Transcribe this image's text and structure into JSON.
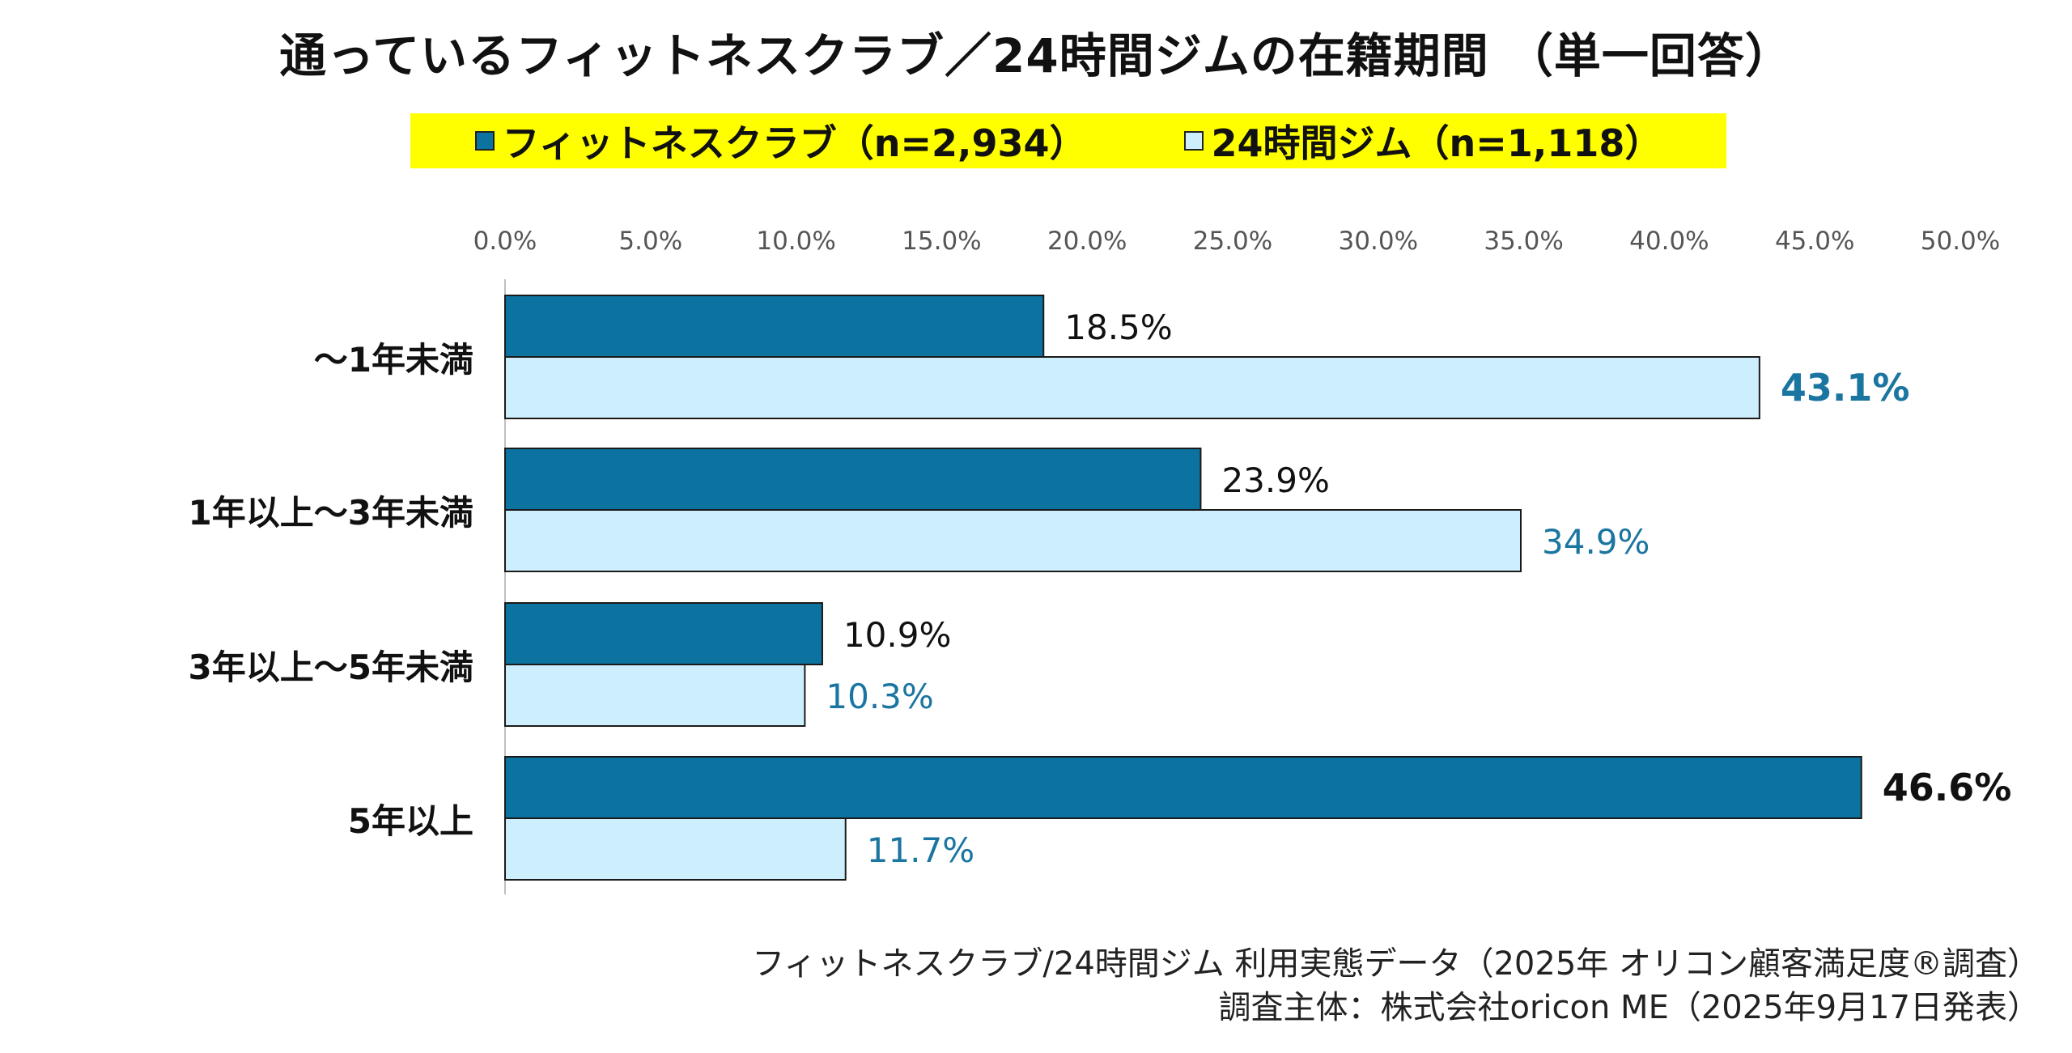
{
  "chart_data": {
    "type": "bar",
    "orientation": "horizontal",
    "title": "通っているフィットネスクラブ／24時間ジムの在籍期間 （単一回答）",
    "categories": [
      "～1年未満",
      "1年以上～3年未満",
      "3年以上～5年未満",
      "5年以上"
    ],
    "series": [
      {
        "name": "フィットネスクラブ（n=2,934）",
        "color": "#0c73a0",
        "label_color": "#111111",
        "values": [
          18.5,
          23.9,
          10.9,
          46.6
        ],
        "labels": [
          "18.5%",
          "23.9%",
          "10.9%",
          "46.6%"
        ]
      },
      {
        "name": "24時間ジム（n=1,118）",
        "color": "#cdeefc",
        "label_color": "#1a75a0",
        "values": [
          43.1,
          34.9,
          10.3,
          11.7
        ],
        "labels": [
          "43.1%",
          "34.9%",
          "10.3%",
          "11.7%"
        ]
      }
    ],
    "xlim": [
      0,
      50
    ],
    "xticks": [
      0,
      5,
      10,
      15,
      20,
      25,
      30,
      35,
      40,
      45,
      50
    ],
    "xtick_labels": [
      "0.0%",
      "5.0%",
      "10.0%",
      "15.0%",
      "20.0%",
      "25.0%",
      "30.0%",
      "35.0%",
      "40.0%",
      "45.0%",
      "50.0%"
    ],
    "axis_position": "top",
    "grid": false,
    "legend_position": "top",
    "legend_background": "#ffff00"
  },
  "footer": {
    "source_line1": "フィットネスクラブ/24時間ジム 利用実態データ（2025年 オリコン顧客満足度®調査）",
    "source_line2": "調査主体：株式会社oricon ME（2025年9月17日発表）"
  }
}
